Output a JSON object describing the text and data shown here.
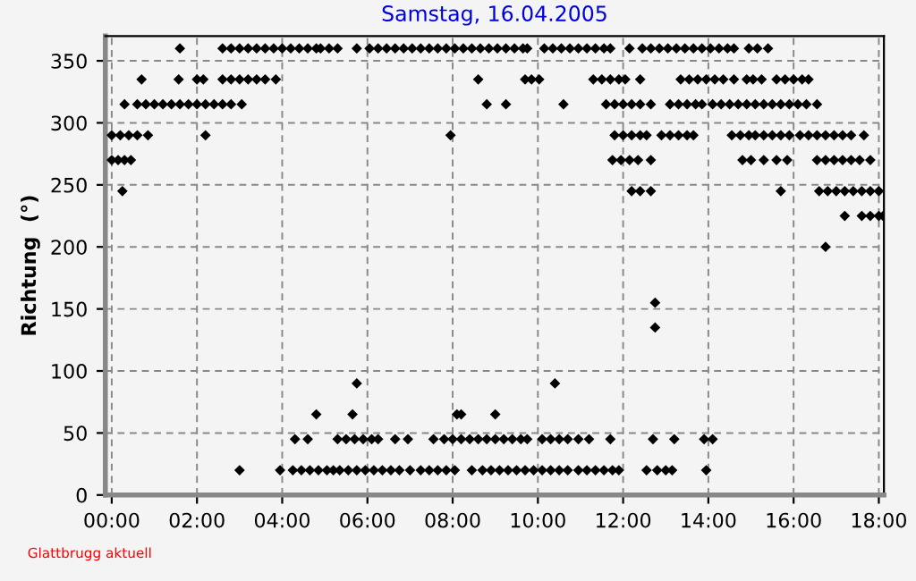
{
  "chart_data": {
    "type": "scatter",
    "title": "Samstag, 16.04.2005",
    "ylabel": "Richtung  (°)",
    "annotations": [
      "Glattbrugg aktuell"
    ],
    "xlim": [
      -0.15,
      18.12
    ],
    "ylim": [
      0,
      370
    ],
    "xticks": [
      {
        "value": 0,
        "label": "00:00"
      },
      {
        "value": 2,
        "label": "02:00"
      },
      {
        "value": 4,
        "label": "04:00"
      },
      {
        "value": 6,
        "label": "06:00"
      },
      {
        "value": 8,
        "label": "08:00"
      },
      {
        "value": 10,
        "label": "10:00"
      },
      {
        "value": 12,
        "label": "12:00"
      },
      {
        "value": 14,
        "label": "14:00"
      },
      {
        "value": 16,
        "label": "16:00"
      },
      {
        "value": 18,
        "label": "18:00"
      }
    ],
    "yticks": [
      0,
      50,
      100,
      150,
      200,
      250,
      300,
      350
    ],
    "grid": true,
    "marker": "diamond",
    "legend": false,
    "series": [
      {
        "color": "#000000",
        "x": [
          1.6,
          2.6,
          2.8,
          3.0,
          3.2,
          3.4,
          3.6,
          3.8,
          4.0,
          4.2,
          4.4,
          4.6,
          4.8,
          4.9,
          5.1,
          5.3,
          5.75,
          6.05,
          6.25,
          6.45,
          6.65,
          6.85,
          7.05,
          7.25,
          7.45,
          7.65,
          7.85,
          8.05,
          8.25,
          8.45,
          8.65,
          8.85,
          9.05,
          9.25,
          9.45,
          9.65,
          9.75,
          10.15,
          10.35,
          10.55,
          10.75,
          10.95,
          11.15,
          11.35,
          11.55,
          11.7,
          12.15,
          12.45,
          12.65,
          12.85,
          13.05,
          13.25,
          13.45,
          13.65,
          13.85,
          14.05,
          14.25,
          14.45,
          14.6,
          14.95,
          15.15,
          15.4
        ],
        "values": [
          360,
          360,
          360,
          360,
          360,
          360,
          360,
          360,
          360,
          360,
          360,
          360,
          360,
          360,
          360,
          360,
          360,
          360,
          360,
          360,
          360,
          360,
          360,
          360,
          360,
          360,
          360,
          360,
          360,
          360,
          360,
          360,
          360,
          360,
          360,
          360,
          360,
          360,
          360,
          360,
          360,
          360,
          360,
          360,
          360,
          360,
          360,
          360,
          360,
          360,
          360,
          360,
          360,
          360,
          360,
          360,
          360,
          360,
          360,
          360,
          360,
          360
        ]
      },
      {
        "color": "#000000",
        "x": [
          0.7,
          1.57,
          2.0,
          2.15,
          2.6,
          2.8,
          3.0,
          3.2,
          3.4,
          3.6,
          3.85,
          8.6,
          9.7,
          9.85,
          10.03,
          11.3,
          11.5,
          11.7,
          11.9,
          12.05,
          12.4,
          13.35,
          13.55,
          13.75,
          13.95,
          14.15,
          14.35,
          14.6,
          14.9,
          15.05,
          15.25,
          15.6,
          15.8,
          16.0,
          16.2,
          16.35
        ],
        "values": [
          335,
          335,
          335,
          335,
          335,
          335,
          335,
          335,
          335,
          335,
          335,
          335,
          335,
          335,
          335,
          335,
          335,
          335,
          335,
          335,
          335,
          335,
          335,
          335,
          335,
          335,
          335,
          335,
          335,
          335,
          335,
          335,
          335,
          335,
          335,
          335
        ]
      },
      {
        "color": "#000000",
        "x": [
          0.3,
          0.6,
          0.8,
          1.0,
          1.2,
          1.4,
          1.6,
          1.8,
          2.0,
          2.2,
          2.4,
          2.6,
          2.8,
          3.05,
          8.8,
          9.25,
          10.6,
          11.6,
          11.8,
          12.0,
          12.2,
          12.4,
          12.65,
          13.1,
          13.3,
          13.5,
          13.7,
          13.85,
          14.1,
          14.3,
          14.5,
          14.7,
          14.9,
          15.1,
          15.3,
          15.5,
          15.7,
          15.9,
          16.1,
          16.3,
          16.55
        ],
        "values": [
          315,
          315,
          315,
          315,
          315,
          315,
          315,
          315,
          315,
          315,
          315,
          315,
          315,
          315,
          315,
          315,
          315,
          315,
          315,
          315,
          315,
          315,
          315,
          315,
          315,
          315,
          315,
          315,
          315,
          315,
          315,
          315,
          315,
          315,
          315,
          315,
          315,
          315,
          315,
          315,
          315
        ]
      },
      {
        "color": "#000000",
        "x": [
          0.0,
          0.2,
          0.4,
          0.6,
          0.85,
          2.2,
          7.95,
          11.8,
          12.0,
          12.2,
          12.4,
          12.55,
          12.9,
          13.1,
          13.3,
          13.5,
          13.65,
          14.55,
          14.75,
          14.95,
          15.1,
          15.3,
          15.5,
          15.7,
          15.9,
          16.15,
          16.35,
          16.55,
          16.75,
          16.95,
          17.15,
          17.35,
          17.65
        ],
        "values": [
          290,
          290,
          290,
          290,
          290,
          290,
          290,
          290,
          290,
          290,
          290,
          290,
          290,
          290,
          290,
          290,
          290,
          290,
          290,
          290,
          290,
          290,
          290,
          290,
          290,
          290,
          290,
          290,
          290,
          290,
          290,
          290,
          290
        ]
      },
      {
        "color": "#000000",
        "x": [
          0.0,
          0.15,
          0.3,
          0.45,
          11.75,
          11.95,
          12.15,
          12.35,
          12.65,
          14.8,
          15.0,
          15.3,
          15.6,
          15.85,
          16.55,
          16.75,
          16.95,
          17.15,
          17.35,
          17.55,
          17.8
        ],
        "values": [
          270,
          270,
          270,
          270,
          270,
          270,
          270,
          270,
          270,
          270,
          270,
          270,
          270,
          270,
          270,
          270,
          270,
          270,
          270,
          270,
          270
        ]
      },
      {
        "color": "#000000",
        "x": [
          0.25,
          12.2,
          12.4,
          12.65,
          15.7,
          16.6,
          16.8,
          17.0,
          17.2,
          17.4,
          17.6,
          17.8,
          18.0
        ],
        "values": [
          245,
          245,
          245,
          245,
          245,
          245,
          245,
          245,
          245,
          245,
          245,
          245,
          245
        ]
      },
      {
        "color": "#000000",
        "x": [
          17.2,
          17.6,
          17.8,
          18.0,
          18.1
        ],
        "values": [
          225,
          225,
          225,
          225,
          225
        ]
      },
      {
        "color": "#000000",
        "x": [
          16.75,
          12.75,
          12.75,
          5.75,
          10.4
        ],
        "values": [
          200,
          155,
          135,
          90,
          90
        ]
      },
      {
        "color": "#000000",
        "x": [
          4.8,
          5.65,
          8.1,
          8.2,
          9.0
        ],
        "values": [
          65,
          65,
          65,
          65,
          65
        ]
      },
      {
        "color": "#000000",
        "x": [
          4.3,
          4.6,
          5.3,
          5.5,
          5.7,
          5.9,
          6.1,
          6.25,
          6.65,
          6.95,
          7.55,
          7.8,
          8.0,
          8.2,
          8.4,
          8.6,
          8.8,
          9.0,
          9.2,
          9.4,
          9.6,
          9.75,
          10.1,
          10.3,
          10.5,
          10.7,
          10.95,
          11.2,
          11.7,
          12.7,
          13.2,
          13.9,
          14.1
        ],
        "values": [
          45,
          45,
          45,
          45,
          45,
          45,
          45,
          45,
          45,
          45,
          45,
          45,
          45,
          45,
          45,
          45,
          45,
          45,
          45,
          45,
          45,
          45,
          45,
          45,
          45,
          45,
          45,
          45,
          45,
          45,
          45,
          45,
          45
        ]
      },
      {
        "color": "#000000",
        "x": [
          3.0,
          3.95,
          4.25,
          4.45,
          4.65,
          4.85,
          5.05,
          5.2,
          5.35,
          5.55,
          5.75,
          5.95,
          6.15,
          6.35,
          6.55,
          6.75,
          7.0,
          7.25,
          7.45,
          7.65,
          7.85,
          8.05,
          8.45,
          8.7,
          8.9,
          9.1,
          9.3,
          9.5,
          9.7,
          9.9,
          10.1,
          10.3,
          10.5,
          10.7,
          10.95,
          11.15,
          11.35,
          11.55,
          11.75,
          11.9,
          12.55,
          12.8,
          13.0,
          13.15,
          13.95
        ],
        "values": [
          20,
          20,
          20,
          20,
          20,
          20,
          20,
          20,
          20,
          20,
          20,
          20,
          20,
          20,
          20,
          20,
          20,
          20,
          20,
          20,
          20,
          20,
          20,
          20,
          20,
          20,
          20,
          20,
          20,
          20,
          20,
          20,
          20,
          20,
          20,
          20,
          20,
          20,
          20,
          20,
          20,
          20,
          20,
          20,
          20
        ]
      }
    ]
  }
}
